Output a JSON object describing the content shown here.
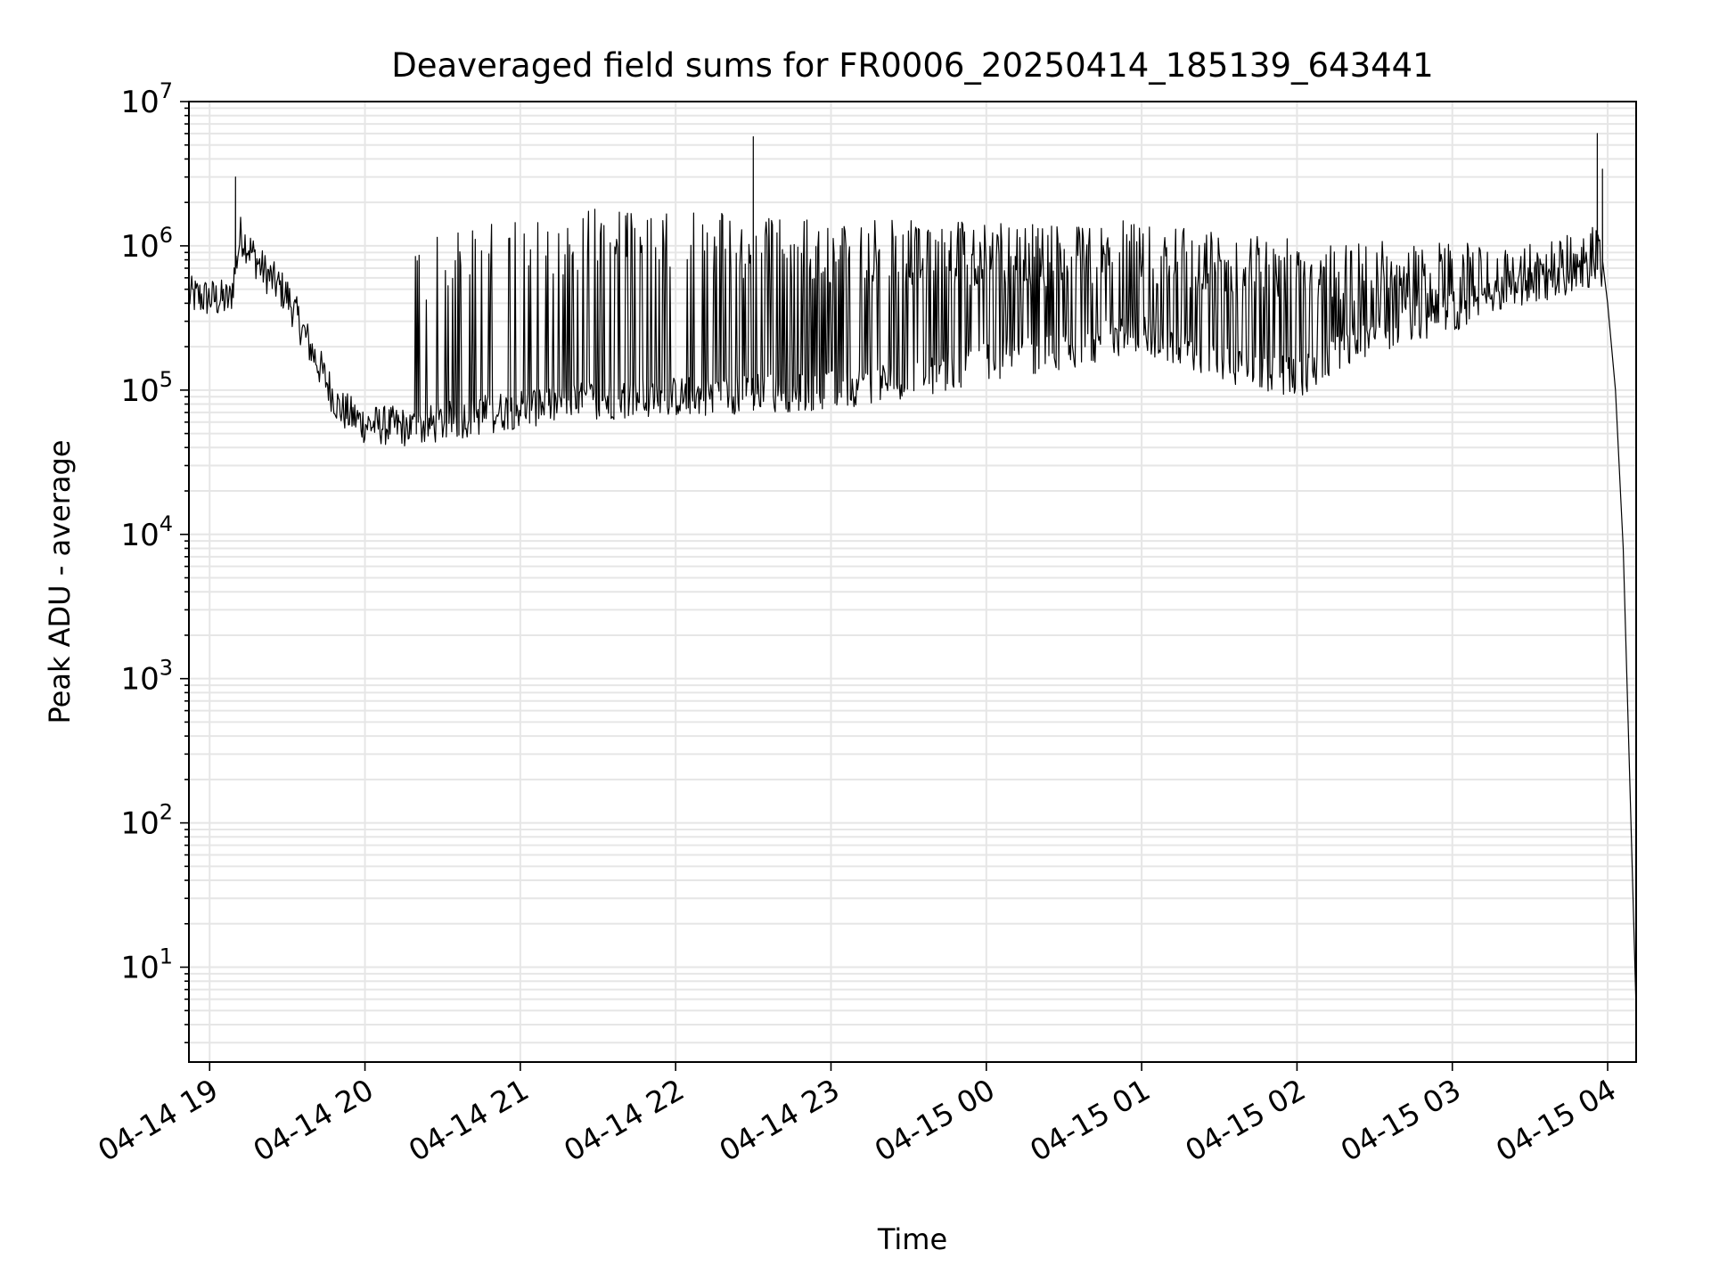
{
  "chart_data": {
    "type": "line",
    "title": "Deaveraged field sums for FR0006_20250414_185139_643441",
    "xlabel": "Time",
    "ylabel": "Peak ADU - average",
    "yscale": "log",
    "ylim": [
      2.2,
      10000000
    ],
    "xlim": [
      "04-14 18:52",
      "04-15 04:11"
    ],
    "x_ticks": [
      "04-14 19",
      "04-14 20",
      "04-14 21",
      "04-14 22",
      "04-14 23",
      "04-15 00",
      "04-15 01",
      "04-15 02",
      "04-15 03",
      "04-15 04"
    ],
    "x_tick_times": [
      "04-14 19:00",
      "04-14 20:00",
      "04-14 21:00",
      "04-14 22:00",
      "04-14 23:00",
      "04-15 00:00",
      "04-15 01:00",
      "04-15 02:00",
      "04-15 03:00",
      "04-15 04:00"
    ],
    "y_ticks": [
      {
        "base": "10",
        "exp": "1",
        "value": 10
      },
      {
        "base": "10",
        "exp": "2",
        "value": 100
      },
      {
        "base": "10",
        "exp": "3",
        "value": 1000
      },
      {
        "base": "10",
        "exp": "4",
        "value": 10000
      },
      {
        "base": "10",
        "exp": "5",
        "value": 100000
      },
      {
        "base": "10",
        "exp": "6",
        "value": 1000000
      },
      {
        "base": "10",
        "exp": "7",
        "value": 10000000
      }
    ],
    "grid": true,
    "line_color": "#000000",
    "grid_color": "#e6e6e6",
    "series": [
      {
        "baseline": [
          {
            "x": "04-14 18:52",
            "y": 450000
          },
          {
            "x": "04-14 19:08",
            "y": 420000
          },
          {
            "x": "04-14 19:12",
            "y": 1200000
          },
          {
            "x": "04-14 19:20",
            "y": 700000
          },
          {
            "x": "04-14 19:30",
            "y": 450000
          },
          {
            "x": "04-14 19:40",
            "y": 180000
          },
          {
            "x": "04-14 19:50",
            "y": 75000
          },
          {
            "x": "04-14 20:00",
            "y": 58000
          },
          {
            "x": "04-14 20:20",
            "y": 55000
          },
          {
            "x": "04-14 20:40",
            "y": 65000
          },
          {
            "x": "04-14 21:00",
            "y": 75000
          },
          {
            "x": "04-14 21:30",
            "y": 85000
          },
          {
            "x": "04-14 22:00",
            "y": 90000
          },
          {
            "x": "04-14 22:30",
            "y": 95000
          },
          {
            "x": "04-14 23:00",
            "y": 100000
          },
          {
            "x": "04-14 23:40",
            "y": 130000
          },
          {
            "x": "04-15 00:00",
            "y": 160000
          },
          {
            "x": "04-15 00:30",
            "y": 190000
          },
          {
            "x": "04-15 01:00",
            "y": 250000
          },
          {
            "x": "04-15 01:30",
            "y": 160000
          },
          {
            "x": "04-15 02:00",
            "y": 120000
          },
          {
            "x": "04-15 02:30",
            "y": 250000
          },
          {
            "x": "04-15 03:00",
            "y": 350000
          },
          {
            "x": "04-15 03:30",
            "y": 550000
          },
          {
            "x": "04-15 03:58",
            "y": 700000
          }
        ],
        "spike_level": [
          {
            "x": "04-14 20:15",
            "y": 1000000
          },
          {
            "x": "04-14 20:40",
            "y": 1600000
          },
          {
            "x": "04-14 21:30",
            "y": 1800000
          },
          {
            "x": "04-14 22:00",
            "y": 1800000
          },
          {
            "x": "04-14 22:30",
            "y": 1600000
          },
          {
            "x": "04-14 23:00",
            "y": 1550000
          },
          {
            "x": "04-15 00:00",
            "y": 1450000
          },
          {
            "x": "04-15 01:00",
            "y": 1500000
          },
          {
            "x": "04-15 02:00",
            "y": 1200000
          },
          {
            "x": "04-15 02:30",
            "y": 1100000
          },
          {
            "x": "04-15 03:00",
            "y": 1050000
          },
          {
            "x": "04-15 03:30",
            "y": 1100000
          },
          {
            "x": "04-15 03:58",
            "y": 1500000
          }
        ],
        "peaks": [
          {
            "x": "04-14 19:10",
            "y": 3000000
          },
          {
            "x": "04-14 22:30",
            "y": 5700000
          },
          {
            "x": "04-15 03:56",
            "y": 6000000
          },
          {
            "x": "04-15 03:58",
            "y": 3400000
          }
        ],
        "tail": [
          {
            "x": "04-15 03:58",
            "y": 800000
          },
          {
            "x": "04-15 04:00",
            "y": 400000
          },
          {
            "x": "04-15 04:03",
            "y": 100000
          },
          {
            "x": "04-15 04:06",
            "y": 8000
          },
          {
            "x": "04-15 04:09",
            "y": 100
          },
          {
            "x": "04-15 04:11",
            "y": 5
          }
        ]
      }
    ]
  }
}
